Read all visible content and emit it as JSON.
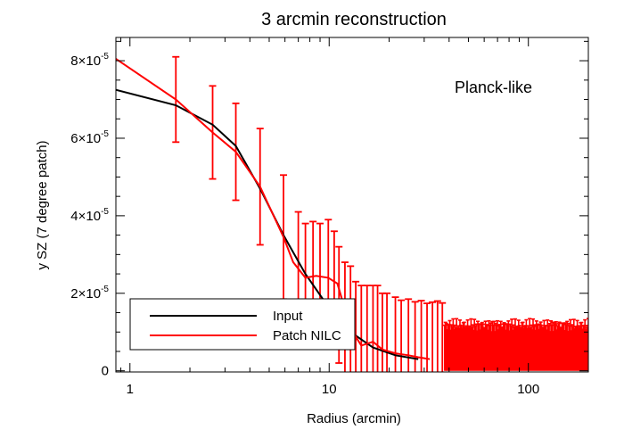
{
  "chart_data": {
    "type": "line",
    "title": "3 arcmin reconstruction",
    "annotation": "Planck-like",
    "xlabel": "Radius (arcmin)",
    "ylabel": "y SZ (7 degree patch)",
    "xscale": "log",
    "xlim": [
      0.85,
      200
    ],
    "ylim": [
      -3e-07,
      8.6e-05
    ],
    "x_ticks": [
      1,
      10,
      100
    ],
    "x_tick_labels": [
      "1",
      "10",
      "100"
    ],
    "y_ticks": [
      0,
      2e-05,
      4e-05,
      6e-05,
      8e-05
    ],
    "y_tick_labels": [
      {
        "mant": "0",
        "exp": ""
      },
      {
        "mant": "2×10",
        "exp": "-5"
      },
      {
        "mant": "4×10",
        "exp": "-5"
      },
      {
        "mant": "6×10",
        "exp": "-5"
      },
      {
        "mant": "8×10",
        "exp": "-5"
      }
    ],
    "legend": [
      "Input",
      "Patch NILC"
    ],
    "colors": {
      "input": "#000000",
      "nilc": "#ff0000"
    },
    "series": [
      {
        "name": "Input",
        "x": [
          0.85,
          1.7,
          2.6,
          3.4,
          4.5,
          5.9,
          7.6,
          9.9,
          12.8,
          16.6,
          21.5,
          28
        ],
        "y": [
          7.25e-05,
          6.85e-05,
          6.35e-05,
          5.8e-05,
          4.7e-05,
          3.5e-05,
          2.5e-05,
          1.65e-05,
          1e-05,
          6e-06,
          4e-06,
          3e-06
        ]
      },
      {
        "name": "Patch NILC",
        "x": [
          0.85,
          1.7,
          2.6,
          3.4,
          4.5,
          5.9,
          6.6,
          7.6,
          8.6,
          9.9,
          11.0,
          12.8,
          14.5,
          16.6,
          18.5,
          21.5,
          25,
          28,
          32
        ],
        "y": [
          8.05e-05,
          7e-05,
          6.15e-05,
          5.65e-05,
          4.75e-05,
          3.45e-05,
          2.8e-05,
          2.4e-05,
          2.45e-05,
          2.4e-05,
          2.25e-05,
          1.1e-05,
          6.5e-06,
          7.5e-06,
          5.5e-06,
          4.5e-06,
          4e-06,
          3.5e-06,
          3e-06
        ]
      }
    ],
    "errorbars": {
      "x": [
        1.7,
        2.6,
        3.4,
        4.5,
        5.9,
        7.0,
        7.6,
        8.3,
        9.0,
        9.9,
        10.6,
        11.2,
        12.0,
        12.8,
        13.6,
        14.5,
        15.5,
        16.6,
        17.5,
        18.5,
        19.5,
        21.5,
        23,
        25,
        27,
        29,
        31,
        33,
        35,
        37
      ],
      "center": [
        7e-05,
        6.15e-05,
        5.65e-05,
        4.75e-05,
        3.45e-05,
        2.6e-05,
        2.4e-05,
        2.4e-05,
        2.45e-05,
        2.4e-05,
        2.2e-05,
        1.7e-05,
        1.3e-05,
        1.05e-05,
        7.5e-06,
        6.5e-06,
        7e-06,
        7.5e-06,
        6.5e-06,
        5.5e-06,
        5e-06,
        4.5e-06,
        4.2e-06,
        4e-06,
        3.8e-06,
        3.6e-06,
        3.4e-06,
        3.2e-06,
        3e-06,
        3e-06
      ],
      "half_width": [
        1.1e-05,
        1.2e-05,
        1.25e-05,
        1.5e-05,
        1.6e-05,
        1.5e-05,
        1.4e-05,
        1.45e-05,
        1.35e-05,
        1.5e-05,
        1.4e-05,
        1.5e-05,
        1.5e-05,
        1.65e-05,
        1.55e-05,
        1.55e-05,
        1.5e-05,
        1.45e-05,
        1.55e-05,
        1.45e-05,
        1.5e-05,
        1.45e-05,
        1.4e-05,
        1.45e-05,
        1.4e-05,
        1.45e-05,
        1.4e-05,
        1.45e-05,
        1.5e-05,
        1.45e-05
      ]
    },
    "noise_band": {
      "x_range": [
        38,
        200
      ],
      "low_y": 0.0,
      "high_y_min": 1e-05,
      "high_y_max": 1.35e-05,
      "count": 170
    }
  }
}
